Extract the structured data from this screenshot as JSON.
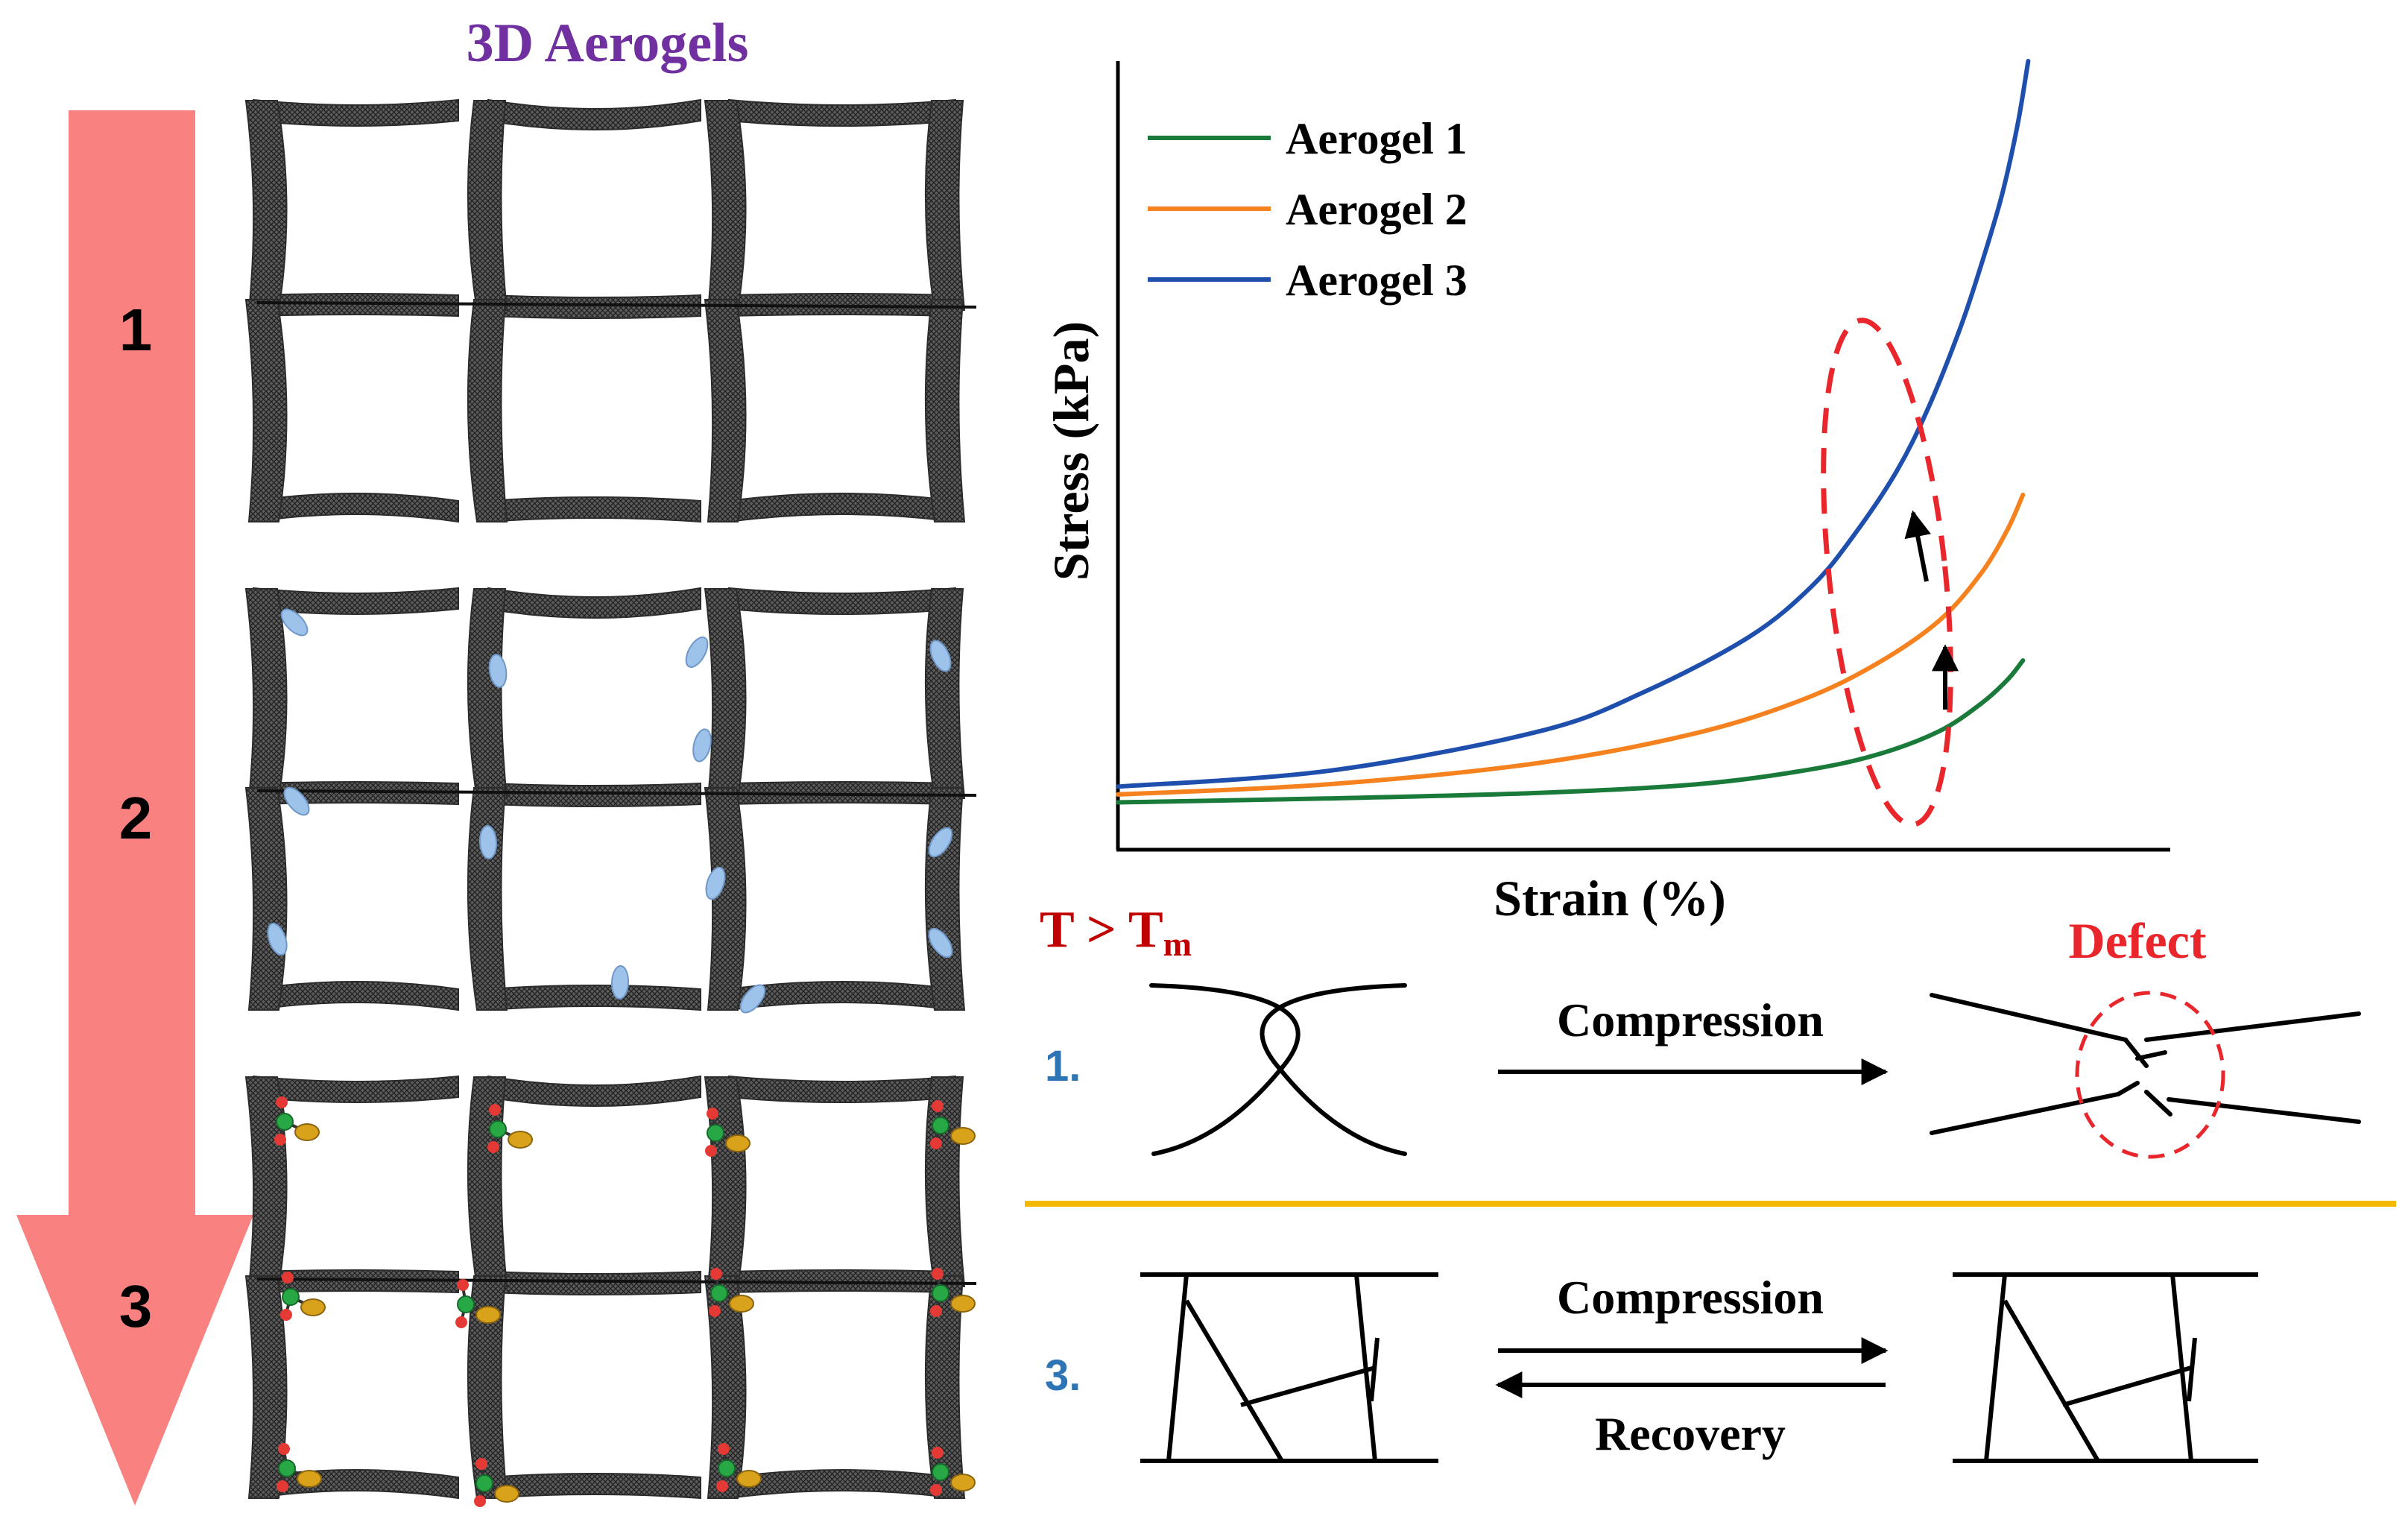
{
  "panel_title": "3D Aerogels",
  "progression_labels": [
    "1",
    "2",
    "3"
  ],
  "colors": {
    "arrow": "#f98281",
    "title_purple": "#7030a0",
    "aerogel1": "#1a7a3a",
    "aerogel2": "#f5821f",
    "aerogel3": "#1f4fad",
    "red_accent": "#e8262b",
    "blue_text": "#2e75b6",
    "divider": "#f5b800",
    "frame": "#3a3a3a",
    "bead_blue": "#9ec3ea",
    "bead_gold": "#d9a21b",
    "bead_green": "#27a844",
    "bead_red": "#e53935"
  },
  "chart_data": {
    "type": "line",
    "xlabel": "Strain (%)",
    "ylabel": "Stress (kPa)",
    "x_ticks": "none",
    "y_ticks": "none",
    "xlim": [
      0,
      100
    ],
    "ylim": [
      0,
      100
    ],
    "legend_position": "top-left",
    "series": [
      {
        "name": "Aerogel 1",
        "color": "#1a7a3a",
        "x": [
          0,
          20,
          40,
          55,
          65,
          72,
          78,
          82,
          84.5,
          86
        ],
        "y": [
          6,
          6.5,
          7.2,
          8.3,
          10,
          12,
          15,
          18.5,
          21.5,
          24
        ]
      },
      {
        "name": "Aerogel 2",
        "color": "#f5821f",
        "x": [
          0,
          20,
          40,
          55,
          65,
          72,
          78,
          82,
          84.5,
          86
        ],
        "y": [
          7,
          8.3,
          11,
          14.8,
          19,
          23.5,
          29,
          35,
          40.5,
          45
        ]
      },
      {
        "name": "Aerogel 3",
        "color": "#1f4fad",
        "x": [
          0,
          20,
          40,
          50,
          60,
          66,
          70,
          74,
          77,
          80,
          82,
          84,
          85.5,
          86.5
        ],
        "y": [
          8,
          10,
          15,
          20,
          27,
          33.5,
          40,
          48,
          56,
          66,
          74,
          83,
          92,
          100
        ]
      }
    ],
    "annotation": "dashed ellipse around the curve ends with two upward arrows"
  },
  "temperature_label": "T > T",
  "temperature_subscript": "m",
  "mechanisms": [
    {
      "number": "1.",
      "arrow_label": "Compression",
      "result_label": "Defect"
    },
    {
      "number": "3.",
      "forward_label": "Compression",
      "reverse_label": "Recovery"
    }
  ]
}
